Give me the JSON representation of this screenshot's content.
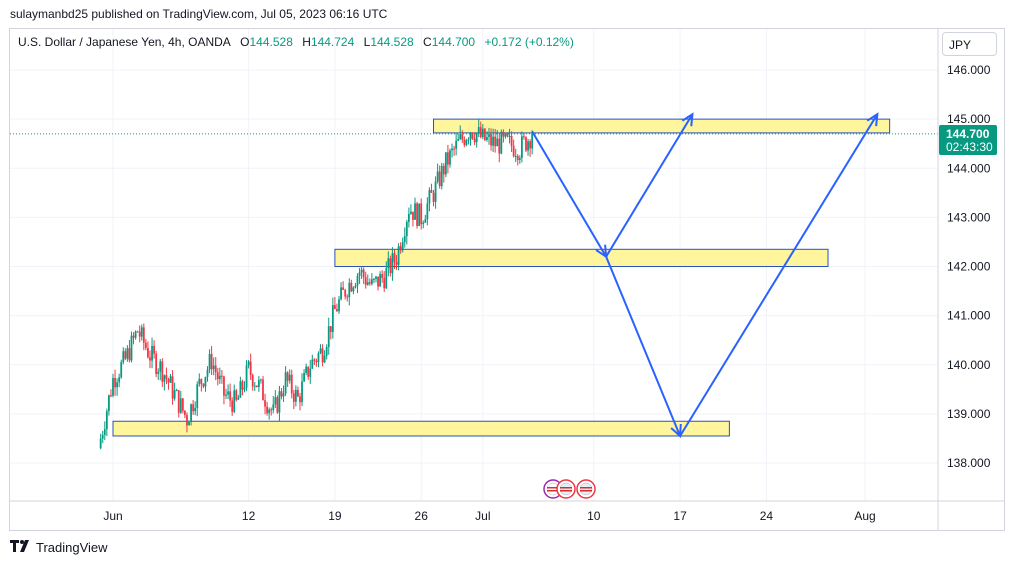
{
  "header": {
    "published": "sulaymanbd25 published on TradingView.com, Jul 05, 2023 06:16 UTC"
  },
  "legend": {
    "symbol": "U.S. Dollar / Japanese Yen, 4h, OANDA",
    "open_label": "O",
    "open": "144.528",
    "high_label": "H",
    "high": "144.724",
    "low_label": "L",
    "low": "144.528",
    "close_label": "C",
    "close": "144.700",
    "change": "+0.172 (+0.12%)"
  },
  "currency_button": "JPY",
  "price_tag": {
    "price": "144.700",
    "countdown": "02:43:30"
  },
  "footer": {
    "brand": "TradingView"
  },
  "colors": {
    "up": "#089981",
    "down": "#f23645",
    "zone_fill": "#fff59d",
    "zone_border": "#2a52be",
    "arrow": "#2962ff"
  },
  "icons": [
    "tradingview-logo-icon",
    "event-icon-jp",
    "event-icon-us",
    "event-icon-us-2"
  ],
  "chart_data": {
    "type": "candlestick",
    "y_ticks": [
      "146.000",
      "145.000",
      "144.000",
      "143.000",
      "142.000",
      "141.000",
      "140.000",
      "139.000",
      "138.000"
    ],
    "x_ticks": [
      "Jun",
      "12",
      "19",
      "26",
      "Jul",
      "10",
      "17",
      "24",
      "Aug"
    ],
    "ylim": [
      137.3,
      146.6
    ],
    "last_price": 144.7,
    "candles_close_path": [
      {
        "x": "2023-05-31",
        "y": 138.5
      },
      {
        "x": "2023-06-01",
        "y": 139.7
      },
      {
        "x": "2023-06-02",
        "y": 140.1
      },
      {
        "x": "2023-06-03",
        "y": 140.7
      },
      {
        "x": "2023-06-04",
        "y": 140.2
      },
      {
        "x": "2023-06-05",
        "y": 139.9
      },
      {
        "x": "2023-06-06",
        "y": 139.4
      },
      {
        "x": "2023-06-07",
        "y": 138.9
      },
      {
        "x": "2023-06-08",
        "y": 139.6
      },
      {
        "x": "2023-06-09",
        "y": 140.1
      },
      {
        "x": "2023-06-10",
        "y": 139.4
      },
      {
        "x": "2023-06-11",
        "y": 139.2
      },
      {
        "x": "2023-06-12",
        "y": 139.9
      },
      {
        "x": "2023-06-13",
        "y": 139.5
      },
      {
        "x": "2023-06-14",
        "y": 139.0
      },
      {
        "x": "2023-06-15",
        "y": 139.7
      },
      {
        "x": "2023-06-16",
        "y": 139.3
      },
      {
        "x": "2023-06-17",
        "y": 140.0
      },
      {
        "x": "2023-06-18",
        "y": 140.3
      },
      {
        "x": "2023-06-19",
        "y": 141.1
      },
      {
        "x": "2023-06-20",
        "y": 141.6
      },
      {
        "x": "2023-06-21",
        "y": 141.9
      },
      {
        "x": "2023-06-22",
        "y": 141.6
      },
      {
        "x": "2023-06-23",
        "y": 141.8
      },
      {
        "x": "2023-06-24",
        "y": 142.2
      },
      {
        "x": "2023-06-25",
        "y": 143.2
      },
      {
        "x": "2023-06-26",
        "y": 143.0
      },
      {
        "x": "2023-06-27",
        "y": 143.5
      },
      {
        "x": "2023-06-28",
        "y": 144.1
      },
      {
        "x": "2023-06-29",
        "y": 144.5
      },
      {
        "x": "2023-06-30",
        "y": 144.8
      },
      {
        "x": "2023-07-01",
        "y": 144.6
      },
      {
        "x": "2023-07-02",
        "y": 144.5
      },
      {
        "x": "2023-07-03",
        "y": 144.5
      },
      {
        "x": "2023-07-04",
        "y": 144.4
      },
      {
        "x": "2023-07-05",
        "y": 144.7
      }
    ],
    "zones": [
      {
        "from": "2023-06-27",
        "to": "2023-08-03",
        "low": 144.72,
        "high": 145.0
      },
      {
        "from": "2023-06-19",
        "to": "2023-07-29",
        "low": 142.0,
        "high": 142.35
      },
      {
        "from": "2023-06-01",
        "to": "2023-07-21",
        "low": 138.55,
        "high": 138.85
      }
    ],
    "projection_path": [
      {
        "x": "2023-07-05",
        "y": 144.75
      },
      {
        "x": "2023-07-11",
        "y": 142.2
      },
      {
        "x": "2023-07-18",
        "y": 145.1
      },
      {
        "x": "2023-07-11",
        "y": 142.2
      },
      {
        "x": "2023-07-17",
        "y": 138.55
      },
      {
        "x": "2023-08-02",
        "y": 145.1
      }
    ]
  }
}
